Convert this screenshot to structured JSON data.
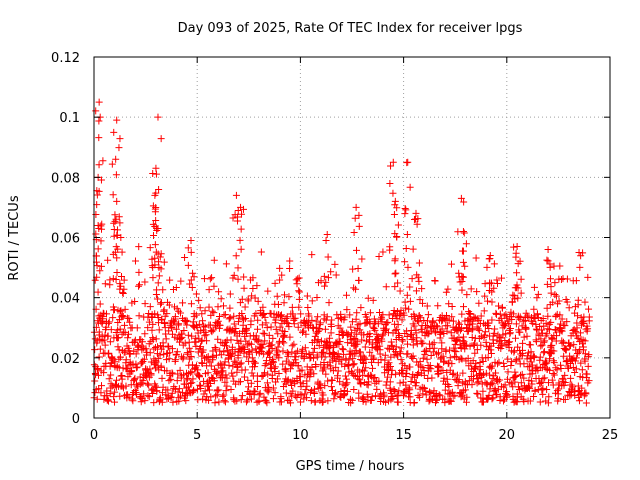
{
  "chart_data": {
    "type": "scatter",
    "title": "Day 093 of 2025, Rate Of TEC Index for receiver lpgs",
    "xlabel": "GPS time / hours",
    "ylabel": "ROTI / TECUs",
    "xlim": [
      0,
      25
    ],
    "ylim": [
      0,
      0.12
    ],
    "x_ticks": [
      0,
      5,
      10,
      15,
      20,
      25
    ],
    "x_tick_labels": [
      "0",
      "5",
      "10",
      "15",
      "20",
      "25"
    ],
    "y_ticks": [
      0,
      0.02,
      0.04,
      0.06,
      0.08,
      0.1,
      0.12
    ],
    "y_tick_labels": [
      "0",
      "0.02",
      "0.04",
      "0.06",
      "0.08",
      "0.1",
      "0.12"
    ],
    "grid": true,
    "marker": "+",
    "colors": {
      "points": "#ff0000",
      "grid": "#a0a0a0",
      "axes": "#000000"
    },
    "series": [
      {
        "name": "ROTI",
        "x_range": [
          0,
          24
        ],
        "typical_range": [
          0.005,
          0.035
        ],
        "peaks": [
          {
            "x": 0.25,
            "y": 0.105
          },
          {
            "x": 0.3,
            "y": 0.1
          },
          {
            "x": 0.2,
            "y": 0.08
          },
          {
            "x": 0.2,
            "y": 0.064
          },
          {
            "x": 1.1,
            "y": 0.099
          },
          {
            "x": 1.05,
            "y": 0.086
          },
          {
            "x": 1.1,
            "y": 0.072
          },
          {
            "x": 1.3,
            "y": 0.06
          },
          {
            "x": 3.1,
            "y": 0.1
          },
          {
            "x": 3.0,
            "y": 0.083
          },
          {
            "x": 2.95,
            "y": 0.074
          },
          {
            "x": 3.1,
            "y": 0.063
          },
          {
            "x": 4.7,
            "y": 0.059
          },
          {
            "x": 6.9,
            "y": 0.074
          },
          {
            "x": 7.1,
            "y": 0.07
          },
          {
            "x": 11.3,
            "y": 0.061
          },
          {
            "x": 12.7,
            "y": 0.07
          },
          {
            "x": 14.5,
            "y": 0.085
          },
          {
            "x": 15.2,
            "y": 0.085
          },
          {
            "x": 14.6,
            "y": 0.072
          },
          {
            "x": 15.6,
            "y": 0.068
          },
          {
            "x": 17.8,
            "y": 0.073
          },
          {
            "x": 17.9,
            "y": 0.062
          },
          {
            "x": 19.2,
            "y": 0.054
          },
          {
            "x": 20.5,
            "y": 0.057
          },
          {
            "x": 22.0,
            "y": 0.056
          },
          {
            "x": 23.5,
            "y": 0.055
          }
        ]
      }
    ]
  }
}
